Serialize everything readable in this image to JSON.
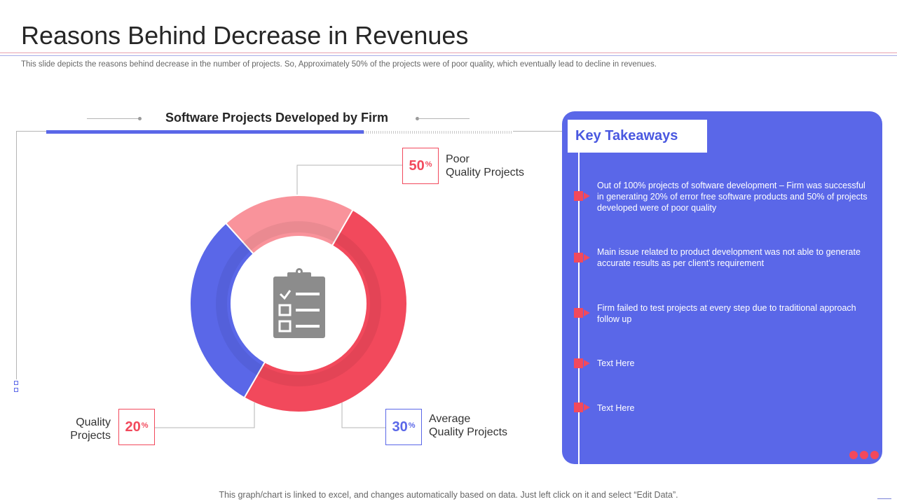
{
  "header": {
    "title": "Reasons Behind Decrease in Revenues",
    "subtitle": "This slide depicts the reasons behind decrease in the number of projects. So, Approximately 50% of the projects were of poor quality, which eventually lead to  decline in revenues."
  },
  "chart_data": {
    "type": "pie",
    "title": "Software Projects Developed by Firm",
    "slices": [
      {
        "label": "Poor Quality Projects",
        "label_line1": "Poor",
        "label_line2": "Quality Projects",
        "value": 50,
        "color": "#f2495c"
      },
      {
        "label": "Average Quality Projects",
        "label_line1": "Average",
        "label_line2": "Quality Projects",
        "value": 30,
        "color": "#5a67e8"
      },
      {
        "label": "Quality Projects",
        "label_line1": "Quality",
        "label_line2": "Projects",
        "value": 20,
        "color": "#f9939b"
      }
    ],
    "value_suffix": "%",
    "center_icon": "clipboard-checklist-icon"
  },
  "takeaways": {
    "title": "Key Takeaways",
    "items": [
      "Out of 100% projects of software development  – Firm was successful in generating 20% of error free software products and 50% of projects developed  were of poor quality",
      "Main issue related to product development  was not able to generate accurate results as per client’s requirement",
      "Firm failed to test projects at every  step due to traditional approach follow up",
      "Text Here",
      "Text Here"
    ]
  },
  "footer": {
    "note": "This graph/chart is linked to excel, and changes automatically based on data. Just left click on it and select “Edit Data”."
  },
  "colors": {
    "accent_red": "#f2495c",
    "accent_blue": "#5a67e8",
    "light_red": "#f9939b",
    "icon_gray": "#8c8c8c"
  }
}
